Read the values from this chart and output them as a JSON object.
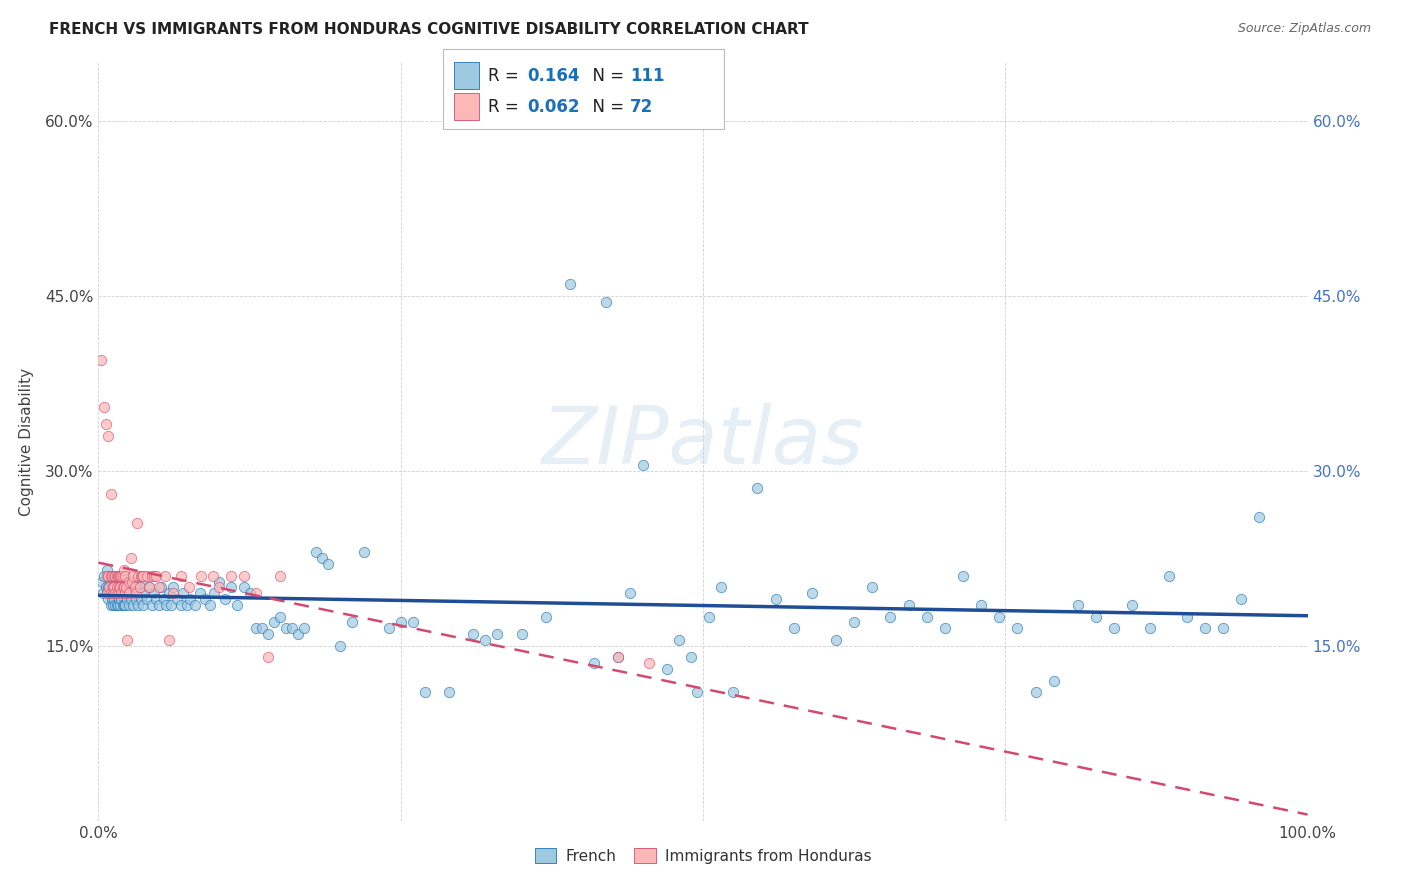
{
  "title": "FRENCH VS IMMIGRANTS FROM HONDURAS COGNITIVE DISABILITY CORRELATION CHART",
  "source": "Source: ZipAtlas.com",
  "ylabel": "Cognitive Disability",
  "xlim": [
    0.0,
    1.0
  ],
  "ylim": [
    0.0,
    0.65
  ],
  "ytick_positions": [
    0.15,
    0.3,
    0.45,
    0.6
  ],
  "ytick_labels": [
    "15.0%",
    "30.0%",
    "45.0%",
    "60.0%"
  ],
  "blue_color": "#9ecae1",
  "pink_color": "#fcb7b7",
  "blue_edge_color": "#2171b5",
  "pink_edge_color": "#d44a6e",
  "blue_line_color": "#1f4e96",
  "pink_line_color": "#d44a6e",
  "r_value_color": "#1a6fba",
  "background_color": "#ffffff",
  "grid_color": "#cccccc",
  "french_scatter": [
    [
      0.003,
      0.205
    ],
    [
      0.004,
      0.195
    ],
    [
      0.005,
      0.21
    ],
    [
      0.006,
      0.2
    ],
    [
      0.007,
      0.215
    ],
    [
      0.007,
      0.195
    ],
    [
      0.008,
      0.2
    ],
    [
      0.008,
      0.19
    ],
    [
      0.009,
      0.21
    ],
    [
      0.009,
      0.195
    ],
    [
      0.01,
      0.205
    ],
    [
      0.01,
      0.185
    ],
    [
      0.011,
      0.2
    ],
    [
      0.011,
      0.19
    ],
    [
      0.012,
      0.21
    ],
    [
      0.012,
      0.185
    ],
    [
      0.013,
      0.2
    ],
    [
      0.013,
      0.19
    ],
    [
      0.014,
      0.205
    ],
    [
      0.014,
      0.185
    ],
    [
      0.015,
      0.2
    ],
    [
      0.015,
      0.185
    ],
    [
      0.016,
      0.205
    ],
    [
      0.016,
      0.185
    ],
    [
      0.017,
      0.2
    ],
    [
      0.017,
      0.19
    ],
    [
      0.018,
      0.205
    ],
    [
      0.018,
      0.185
    ],
    [
      0.019,
      0.2
    ],
    [
      0.019,
      0.19
    ],
    [
      0.02,
      0.205
    ],
    [
      0.02,
      0.185
    ],
    [
      0.021,
      0.2
    ],
    [
      0.021,
      0.185
    ],
    [
      0.022,
      0.205
    ],
    [
      0.022,
      0.185
    ],
    [
      0.023,
      0.2
    ],
    [
      0.024,
      0.19
    ],
    [
      0.025,
      0.205
    ],
    [
      0.025,
      0.185
    ],
    [
      0.026,
      0.2
    ],
    [
      0.027,
      0.19
    ],
    [
      0.028,
      0.2
    ],
    [
      0.029,
      0.185
    ],
    [
      0.03,
      0.2
    ],
    [
      0.031,
      0.19
    ],
    [
      0.032,
      0.2
    ],
    [
      0.033,
      0.185
    ],
    [
      0.034,
      0.2
    ],
    [
      0.035,
      0.19
    ],
    [
      0.036,
      0.205
    ],
    [
      0.037,
      0.185
    ],
    [
      0.038,
      0.195
    ],
    [
      0.04,
      0.19
    ],
    [
      0.042,
      0.2
    ],
    [
      0.044,
      0.185
    ],
    [
      0.046,
      0.195
    ],
    [
      0.048,
      0.19
    ],
    [
      0.05,
      0.185
    ],
    [
      0.052,
      0.2
    ],
    [
      0.054,
      0.19
    ],
    [
      0.056,
      0.185
    ],
    [
      0.058,
      0.195
    ],
    [
      0.06,
      0.185
    ],
    [
      0.062,
      0.2
    ],
    [
      0.065,
      0.19
    ],
    [
      0.068,
      0.185
    ],
    [
      0.07,
      0.195
    ],
    [
      0.073,
      0.185
    ],
    [
      0.076,
      0.19
    ],
    [
      0.08,
      0.185
    ],
    [
      0.084,
      0.195
    ],
    [
      0.088,
      0.19
    ],
    [
      0.092,
      0.185
    ],
    [
      0.096,
      0.195
    ],
    [
      0.1,
      0.205
    ],
    [
      0.105,
      0.19
    ],
    [
      0.11,
      0.2
    ],
    [
      0.115,
      0.185
    ],
    [
      0.12,
      0.2
    ],
    [
      0.125,
      0.195
    ],
    [
      0.13,
      0.165
    ],
    [
      0.135,
      0.165
    ],
    [
      0.14,
      0.16
    ],
    [
      0.145,
      0.17
    ],
    [
      0.15,
      0.175
    ],
    [
      0.155,
      0.165
    ],
    [
      0.16,
      0.165
    ],
    [
      0.165,
      0.16
    ],
    [
      0.17,
      0.165
    ],
    [
      0.18,
      0.23
    ],
    [
      0.185,
      0.225
    ],
    [
      0.19,
      0.22
    ],
    [
      0.2,
      0.15
    ],
    [
      0.21,
      0.17
    ],
    [
      0.22,
      0.23
    ],
    [
      0.24,
      0.165
    ],
    [
      0.25,
      0.17
    ],
    [
      0.26,
      0.17
    ],
    [
      0.27,
      0.11
    ],
    [
      0.29,
      0.11
    ],
    [
      0.31,
      0.16
    ],
    [
      0.32,
      0.155
    ],
    [
      0.33,
      0.16
    ],
    [
      0.35,
      0.16
    ],
    [
      0.37,
      0.175
    ],
    [
      0.39,
      0.46
    ],
    [
      0.41,
      0.135
    ],
    [
      0.42,
      0.445
    ],
    [
      0.43,
      0.14
    ],
    [
      0.44,
      0.195
    ],
    [
      0.45,
      0.305
    ],
    [
      0.47,
      0.13
    ],
    [
      0.48,
      0.155
    ],
    [
      0.49,
      0.14
    ],
    [
      0.495,
      0.11
    ],
    [
      0.505,
      0.175
    ],
    [
      0.515,
      0.2
    ],
    [
      0.525,
      0.11
    ],
    [
      0.545,
      0.285
    ],
    [
      0.56,
      0.19
    ],
    [
      0.575,
      0.165
    ],
    [
      0.59,
      0.195
    ],
    [
      0.61,
      0.155
    ],
    [
      0.625,
      0.17
    ],
    [
      0.64,
      0.2
    ],
    [
      0.655,
      0.175
    ],
    [
      0.67,
      0.185
    ],
    [
      0.685,
      0.175
    ],
    [
      0.7,
      0.165
    ],
    [
      0.715,
      0.21
    ],
    [
      0.73,
      0.185
    ],
    [
      0.745,
      0.175
    ],
    [
      0.76,
      0.165
    ],
    [
      0.775,
      0.11
    ],
    [
      0.79,
      0.12
    ],
    [
      0.81,
      0.185
    ],
    [
      0.825,
      0.175
    ],
    [
      0.84,
      0.165
    ],
    [
      0.855,
      0.185
    ],
    [
      0.87,
      0.165
    ],
    [
      0.885,
      0.21
    ],
    [
      0.9,
      0.175
    ],
    [
      0.915,
      0.165
    ],
    [
      0.93,
      0.165
    ],
    [
      0.945,
      0.19
    ],
    [
      0.96,
      0.26
    ]
  ],
  "honduras_scatter": [
    [
      0.002,
      0.395
    ],
    [
      0.005,
      0.355
    ],
    [
      0.006,
      0.34
    ],
    [
      0.008,
      0.33
    ],
    [
      0.01,
      0.28
    ],
    [
      0.007,
      0.21
    ],
    [
      0.007,
      0.195
    ],
    [
      0.008,
      0.21
    ],
    [
      0.009,
      0.2
    ],
    [
      0.01,
      0.21
    ],
    [
      0.01,
      0.195
    ],
    [
      0.011,
      0.21
    ],
    [
      0.012,
      0.2
    ],
    [
      0.012,
      0.195
    ],
    [
      0.013,
      0.21
    ],
    [
      0.013,
      0.2
    ],
    [
      0.014,
      0.21
    ],
    [
      0.014,
      0.195
    ],
    [
      0.015,
      0.21
    ],
    [
      0.015,
      0.2
    ],
    [
      0.016,
      0.21
    ],
    [
      0.016,
      0.195
    ],
    [
      0.017,
      0.21
    ],
    [
      0.017,
      0.2
    ],
    [
      0.018,
      0.21
    ],
    [
      0.018,
      0.2
    ],
    [
      0.019,
      0.21
    ],
    [
      0.019,
      0.195
    ],
    [
      0.02,
      0.21
    ],
    [
      0.02,
      0.2
    ],
    [
      0.021,
      0.215
    ],
    [
      0.021,
      0.2
    ],
    [
      0.022,
      0.21
    ],
    [
      0.022,
      0.195
    ],
    [
      0.023,
      0.2
    ],
    [
      0.024,
      0.155
    ],
    [
      0.025,
      0.205
    ],
    [
      0.025,
      0.195
    ],
    [
      0.027,
      0.225
    ],
    [
      0.028,
      0.205
    ],
    [
      0.029,
      0.21
    ],
    [
      0.03,
      0.2
    ],
    [
      0.031,
      0.195
    ],
    [
      0.032,
      0.255
    ],
    [
      0.033,
      0.21
    ],
    [
      0.034,
      0.2
    ],
    [
      0.035,
      0.21
    ],
    [
      0.036,
      0.21
    ],
    [
      0.037,
      0.21
    ],
    [
      0.04,
      0.21
    ],
    [
      0.042,
      0.2
    ],
    [
      0.044,
      0.21
    ],
    [
      0.046,
      0.21
    ],
    [
      0.048,
      0.21
    ],
    [
      0.05,
      0.2
    ],
    [
      0.055,
      0.21
    ],
    [
      0.058,
      0.155
    ],
    [
      0.062,
      0.195
    ],
    [
      0.068,
      0.21
    ],
    [
      0.075,
      0.2
    ],
    [
      0.085,
      0.21
    ],
    [
      0.095,
      0.21
    ],
    [
      0.1,
      0.2
    ],
    [
      0.11,
      0.21
    ],
    [
      0.12,
      0.21
    ],
    [
      0.13,
      0.195
    ],
    [
      0.14,
      0.14
    ],
    [
      0.15,
      0.21
    ],
    [
      0.43,
      0.14
    ],
    [
      0.455,
      0.135
    ]
  ]
}
